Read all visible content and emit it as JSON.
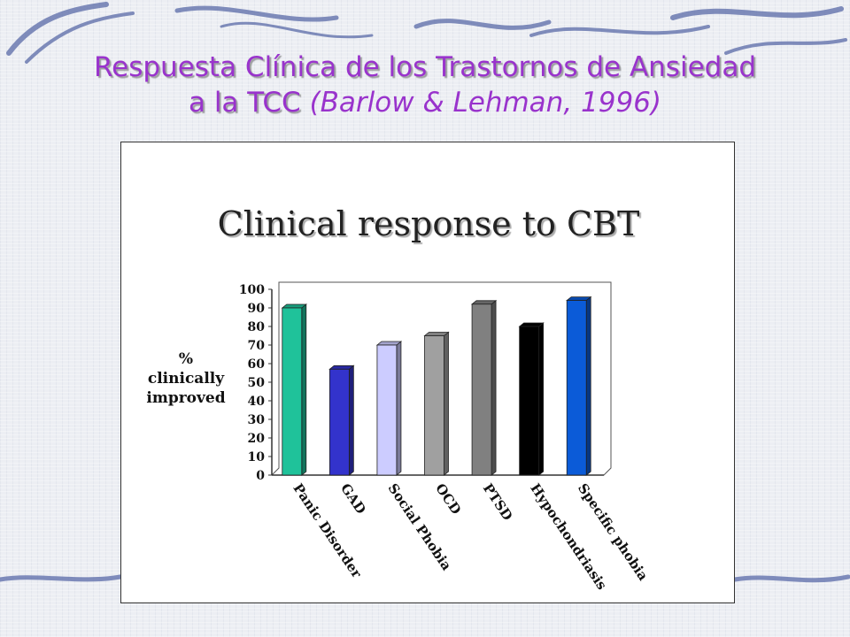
{
  "slide": {
    "title_line1": "Respuesta Clínica de los Trastornos de Ansiedad",
    "title_line2": "a la TCC",
    "title_citation": "(Barlow & Lehman, 1996)"
  },
  "colors": {
    "title": "#9933cc"
  },
  "chart_data": {
    "type": "bar",
    "title": "Clinical response to CBT",
    "ylabel": [
      "%",
      "clinically",
      "improved"
    ],
    "xlabel": "",
    "ylim": [
      0,
      100
    ],
    "yticks": [
      0,
      10,
      20,
      30,
      40,
      50,
      60,
      70,
      80,
      90,
      100
    ],
    "categories": [
      "Panic Disorder",
      "GAD",
      "Social Phobia",
      "OCD",
      "PTSD",
      "Hypochondriasis",
      "Specific phobia"
    ],
    "values": [
      90,
      57,
      70,
      75,
      92,
      80,
      94
    ],
    "bar_colors": [
      "#1fc29a",
      "#3333cc",
      "#ccccff",
      "#a0a0a0",
      "#808080",
      "#000000",
      "#0b5bd8"
    ],
    "grid": false
  }
}
